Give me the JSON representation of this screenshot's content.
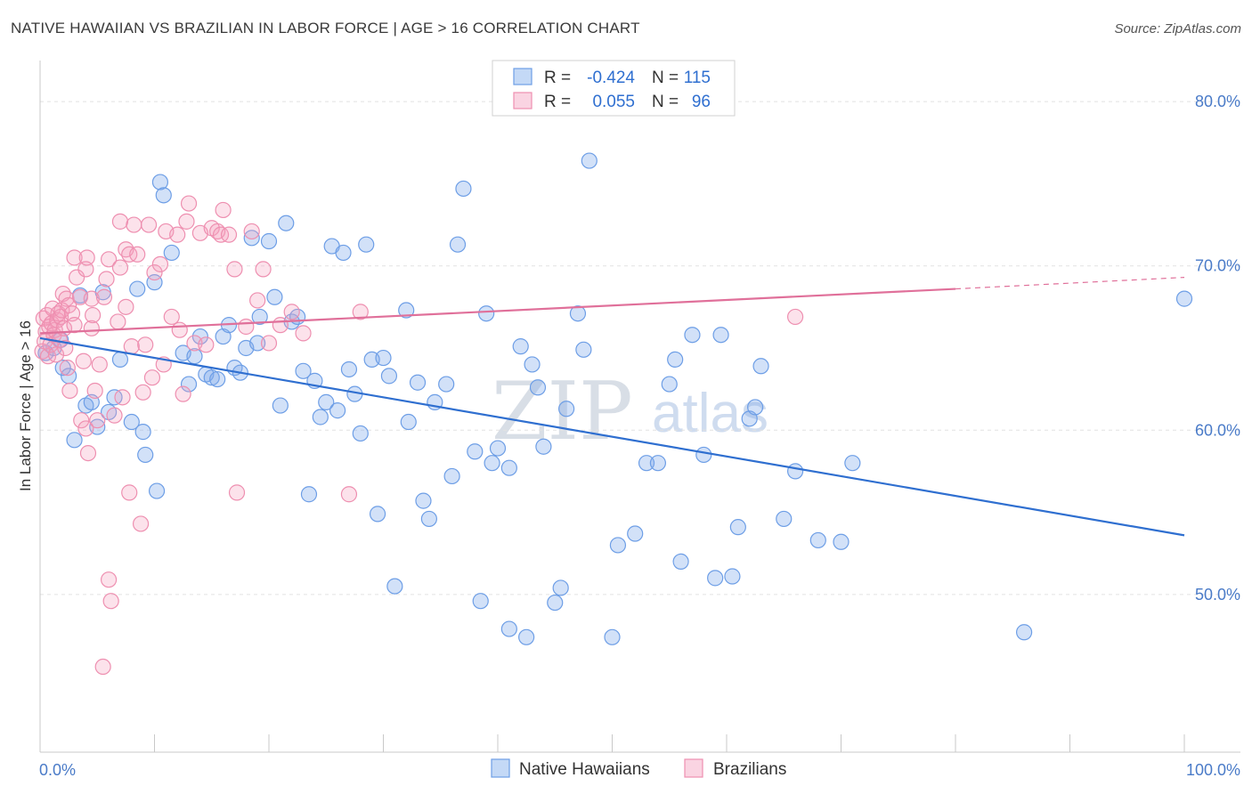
{
  "title": "NATIVE HAWAIIAN VS BRAZILIAN IN LABOR FORCE | AGE > 16 CORRELATION CHART",
  "source": "Source: ZipAtlas.com",
  "watermark": {
    "zip": "ZIP",
    "atlas": "atlas"
  },
  "chart_data": {
    "type": "scatter",
    "ylabel": "In Labor Force | Age > 16",
    "xlim": [
      0,
      100
    ],
    "ylim": [
      40.4,
      82.5
    ],
    "x_tick_labels": [
      "0.0%",
      "100.0%"
    ],
    "y_ticks": [
      50,
      60,
      70,
      80
    ],
    "y_tick_labels": [
      "50.0%",
      "60.0%",
      "70.0%",
      "80.0%"
    ],
    "legend_stats": [
      {
        "r_label": "R =",
        "r_value": "-0.424",
        "n_label": "N =",
        "n_value": "115"
      },
      {
        "r_label": "R =",
        "r_value": "0.055",
        "n_label": "N =",
        "n_value": "96"
      }
    ],
    "series": [
      {
        "name": "Native Hawaiians",
        "color": "#6d9ee6",
        "fill": "rgba(125,170,235,0.35)",
        "trend": {
          "x0": 0,
          "y0": 65.6,
          "x1": 100,
          "y1": 53.6,
          "color": "#2f6fd0"
        },
        "points": [
          [
            0.5,
            64.7
          ],
          [
            1.2,
            65.0
          ],
          [
            1.8,
            65.5
          ],
          [
            2.0,
            63.8
          ],
          [
            2.5,
            63.3
          ],
          [
            3.0,
            59.4
          ],
          [
            3.5,
            68.2
          ],
          [
            4.0,
            61.5
          ],
          [
            4.5,
            61.7
          ],
          [
            5.0,
            60.2
          ],
          [
            5.5,
            68.4
          ],
          [
            6.0,
            61.1
          ],
          [
            6.5,
            62.0
          ],
          [
            7.0,
            64.3
          ],
          [
            8.0,
            60.5
          ],
          [
            8.5,
            68.6
          ],
          [
            9.0,
            59.9
          ],
          [
            9.2,
            58.5
          ],
          [
            10.0,
            69.0
          ],
          [
            10.2,
            56.3
          ],
          [
            10.5,
            75.1
          ],
          [
            10.8,
            74.3
          ],
          [
            11.5,
            70.8
          ],
          [
            12.5,
            64.7
          ],
          [
            13.0,
            62.8
          ],
          [
            13.5,
            64.5
          ],
          [
            14.0,
            65.7
          ],
          [
            14.5,
            63.4
          ],
          [
            15.0,
            63.2
          ],
          [
            15.5,
            63.1
          ],
          [
            16.0,
            65.7
          ],
          [
            16.5,
            66.4
          ],
          [
            17.0,
            63.8
          ],
          [
            17.5,
            63.5
          ],
          [
            18.0,
            65.0
          ],
          [
            18.5,
            71.7
          ],
          [
            19.0,
            65.3
          ],
          [
            19.2,
            66.9
          ],
          [
            20.0,
            71.5
          ],
          [
            20.5,
            68.1
          ],
          [
            21.0,
            61.5
          ],
          [
            21.5,
            72.6
          ],
          [
            22.0,
            66.6
          ],
          [
            22.5,
            66.9
          ],
          [
            23.0,
            63.6
          ],
          [
            23.5,
            56.1
          ],
          [
            24.0,
            63.0
          ],
          [
            24.5,
            60.8
          ],
          [
            25.0,
            61.7
          ],
          [
            25.5,
            71.2
          ],
          [
            26.0,
            61.2
          ],
          [
            26.5,
            70.8
          ],
          [
            27.0,
            63.7
          ],
          [
            27.5,
            62.2
          ],
          [
            28.0,
            59.8
          ],
          [
            28.5,
            71.3
          ],
          [
            29.0,
            64.3
          ],
          [
            29.5,
            54.9
          ],
          [
            30.0,
            64.4
          ],
          [
            30.5,
            63.3
          ],
          [
            31.0,
            50.5
          ],
          [
            32.0,
            67.3
          ],
          [
            32.2,
            60.5
          ],
          [
            33.0,
            62.9
          ],
          [
            33.5,
            55.7
          ],
          [
            34.0,
            54.6
          ],
          [
            34.5,
            61.7
          ],
          [
            35.5,
            62.8
          ],
          [
            36.0,
            57.2
          ],
          [
            36.5,
            71.3
          ],
          [
            37.0,
            74.7
          ],
          [
            38.0,
            58.7
          ],
          [
            38.5,
            49.6
          ],
          [
            39.0,
            67.1
          ],
          [
            39.5,
            58.0
          ],
          [
            40.0,
            58.9
          ],
          [
            41.0,
            47.9
          ],
          [
            41.0,
            57.7
          ],
          [
            42.0,
            65.1
          ],
          [
            42.5,
            47.4
          ],
          [
            43.0,
            64.0
          ],
          [
            43.5,
            62.6
          ],
          [
            44.0,
            59.0
          ],
          [
            45.0,
            49.5
          ],
          [
            45.5,
            50.4
          ],
          [
            46.0,
            61.3
          ],
          [
            47.0,
            67.1
          ],
          [
            47.5,
            64.9
          ],
          [
            48.0,
            76.4
          ],
          [
            50.0,
            47.4
          ],
          [
            50.5,
            53.0
          ],
          [
            52.0,
            53.7
          ],
          [
            53.0,
            58.0
          ],
          [
            54.0,
            58.0
          ],
          [
            55.0,
            62.8
          ],
          [
            55.5,
            64.3
          ],
          [
            56.0,
            52.0
          ],
          [
            57.0,
            65.8
          ],
          [
            58.0,
            58.5
          ],
          [
            59.0,
            51.0
          ],
          [
            59.5,
            65.8
          ],
          [
            60.5,
            51.1
          ],
          [
            61.0,
            54.1
          ],
          [
            62.0,
            60.7
          ],
          [
            62.5,
            61.4
          ],
          [
            63.0,
            63.9
          ],
          [
            65.0,
            54.6
          ],
          [
            66.0,
            57.5
          ],
          [
            68.0,
            53.3
          ],
          [
            70.0,
            53.2
          ],
          [
            71.0,
            58.0
          ],
          [
            86.0,
            47.7
          ],
          [
            100.0,
            68.0
          ]
        ]
      },
      {
        "name": "Brazilians",
        "color": "#ee8fb0",
        "fill": "rgba(245,160,190,0.30)",
        "trend": {
          "x0": 0,
          "y0": 65.9,
          "x1": 80,
          "y1": 68.6,
          "x2": 100,
          "y2": 69.3,
          "color": "#e0709a"
        },
        "points": [
          [
            0.2,
            64.8
          ],
          [
            0.3,
            66.8
          ],
          [
            0.4,
            65.4
          ],
          [
            0.5,
            66.0
          ],
          [
            0.6,
            67.0
          ],
          [
            0.7,
            64.5
          ],
          [
            0.8,
            66.3
          ],
          [
            0.9,
            65.2
          ],
          [
            1.0,
            66.5
          ],
          [
            1.1,
            67.4
          ],
          [
            1.2,
            65.8
          ],
          [
            1.3,
            66.1
          ],
          [
            1.4,
            64.6
          ],
          [
            1.5,
            66.7
          ],
          [
            1.6,
            67.1
          ],
          [
            1.7,
            65.5
          ],
          [
            1.8,
            66.9
          ],
          [
            1.9,
            67.3
          ],
          [
            2.0,
            68.3
          ],
          [
            2.1,
            66.2
          ],
          [
            2.2,
            65.0
          ],
          [
            2.3,
            68.0
          ],
          [
            2.4,
            63.8
          ],
          [
            2.5,
            67.6
          ],
          [
            2.6,
            62.4
          ],
          [
            2.8,
            67.1
          ],
          [
            3.0,
            66.4
          ],
          [
            3.0,
            70.5
          ],
          [
            3.2,
            69.3
          ],
          [
            3.5,
            68.1
          ],
          [
            3.6,
            60.6
          ],
          [
            3.8,
            64.2
          ],
          [
            4.0,
            60.1
          ],
          [
            4.0,
            69.8
          ],
          [
            4.1,
            70.5
          ],
          [
            4.2,
            58.6
          ],
          [
            4.5,
            66.2
          ],
          [
            4.5,
            68.0
          ],
          [
            4.6,
            67.0
          ],
          [
            4.8,
            62.4
          ],
          [
            5.0,
            60.6
          ],
          [
            5.2,
            64.0
          ],
          [
            5.5,
            45.6
          ],
          [
            5.6,
            68.1
          ],
          [
            5.8,
            69.2
          ],
          [
            6.0,
            50.9
          ],
          [
            6.0,
            70.4
          ],
          [
            6.2,
            49.6
          ],
          [
            6.5,
            60.9
          ],
          [
            6.8,
            66.6
          ],
          [
            7.0,
            69.9
          ],
          [
            7.0,
            72.7
          ],
          [
            7.2,
            62.0
          ],
          [
            7.5,
            67.5
          ],
          [
            7.5,
            71.0
          ],
          [
            7.8,
            70.7
          ],
          [
            7.8,
            56.2
          ],
          [
            8.0,
            65.1
          ],
          [
            8.2,
            72.5
          ],
          [
            8.5,
            70.7
          ],
          [
            8.8,
            54.3
          ],
          [
            9.0,
            62.3
          ],
          [
            9.2,
            65.2
          ],
          [
            9.5,
            72.5
          ],
          [
            9.8,
            63.2
          ],
          [
            10.0,
            69.6
          ],
          [
            10.5,
            70.1
          ],
          [
            10.8,
            64.0
          ],
          [
            11.0,
            72.1
          ],
          [
            11.5,
            66.9
          ],
          [
            12.0,
            71.9
          ],
          [
            12.2,
            66.1
          ],
          [
            12.5,
            62.2
          ],
          [
            12.8,
            72.7
          ],
          [
            13.0,
            73.8
          ],
          [
            13.5,
            65.3
          ],
          [
            14.0,
            72.0
          ],
          [
            14.5,
            65.2
          ],
          [
            15.0,
            72.3
          ],
          [
            15.5,
            72.1
          ],
          [
            15.8,
            71.9
          ],
          [
            16.0,
            73.4
          ],
          [
            16.5,
            71.9
          ],
          [
            17.0,
            69.8
          ],
          [
            17.2,
            56.2
          ],
          [
            18.0,
            66.3
          ],
          [
            18.5,
            72.1
          ],
          [
            19.0,
            67.9
          ],
          [
            19.5,
            69.8
          ],
          [
            20.0,
            65.3
          ],
          [
            21.0,
            66.4
          ],
          [
            22.0,
            67.2
          ],
          [
            23.0,
            65.9
          ],
          [
            27.0,
            56.1
          ],
          [
            28.0,
            67.2
          ],
          [
            66.0,
            66.9
          ]
        ]
      }
    ]
  },
  "legend_bottom": [
    "Native Hawaiians",
    "Brazilians"
  ]
}
